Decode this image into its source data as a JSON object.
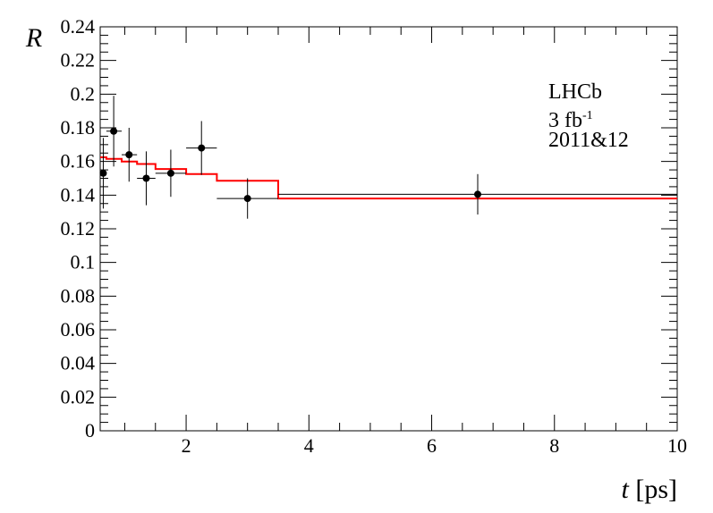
{
  "chart_data": {
    "type": "scatter",
    "title": "",
    "xlabel": "t [ps]",
    "xlabel_var": "t",
    "xlabel_unit": "[ps]",
    "ylabel": "R",
    "xlim": [
      0.6,
      10
    ],
    "ylim": [
      0,
      0.24
    ],
    "x_ticks": [
      2,
      4,
      6,
      8,
      10
    ],
    "y_ticks": [
      0,
      0.02,
      0.04,
      0.06,
      0.08,
      0.1,
      0.12,
      0.14,
      0.16,
      0.18,
      0.2,
      0.22,
      0.24
    ],
    "y_tick_labels": [
      "0",
      "0.02",
      "0.04",
      "0.06",
      "0.08",
      "0.1",
      "0.12",
      "0.14",
      "0.16",
      "0.18",
      "0.2",
      "0.22",
      "0.24"
    ],
    "grid": false,
    "annotations": {
      "experiment": "LHCb",
      "lumi_value": "3 fb",
      "lumi_exponent": "-1",
      "years": "2011&12"
    },
    "data_points": [
      {
        "x": 0.65,
        "x_lo": 0.6,
        "x_hi": 0.7,
        "y": 0.153,
        "y_err": 0.021
      },
      {
        "x": 0.82,
        "x_lo": 0.7,
        "x_hi": 0.95,
        "y": 0.178,
        "y_err": 0.021
      },
      {
        "x": 1.07,
        "x_lo": 0.95,
        "x_hi": 1.2,
        "y": 0.164,
        "y_err": 0.016
      },
      {
        "x": 1.35,
        "x_lo": 1.2,
        "x_hi": 1.5,
        "y": 0.15,
        "y_err": 0.016
      },
      {
        "x": 1.75,
        "x_lo": 1.5,
        "x_hi": 2.0,
        "y": 0.153,
        "y_err": 0.014
      },
      {
        "x": 2.25,
        "x_lo": 2.0,
        "x_hi": 2.5,
        "y": 0.168,
        "y_err": 0.016
      },
      {
        "x": 3.0,
        "x_lo": 2.5,
        "x_hi": 3.5,
        "y": 0.138,
        "y_err": 0.012
      },
      {
        "x": 6.75,
        "x_lo": 3.5,
        "x_hi": 10.0,
        "y": 0.1405,
        "y_err": 0.012
      }
    ],
    "series": [
      {
        "color": "#ff0000",
        "style": "step",
        "steps": [
          {
            "x_lo": 0.6,
            "x_hi": 0.7,
            "y": 0.1625
          },
          {
            "x_lo": 0.7,
            "x_hi": 0.95,
            "y": 0.1615
          },
          {
            "x_lo": 0.95,
            "x_hi": 1.2,
            "y": 0.16
          },
          {
            "x_lo": 1.2,
            "x_hi": 1.5,
            "y": 0.1585
          },
          {
            "x_lo": 1.5,
            "x_hi": 2.0,
            "y": 0.1555
          },
          {
            "x_lo": 2.0,
            "x_hi": 2.5,
            "y": 0.1525
          },
          {
            "x_lo": 2.5,
            "x_hi": 3.5,
            "y": 0.1485
          },
          {
            "x_lo": 3.5,
            "x_hi": 10.0,
            "y": 0.138
          }
        ]
      }
    ]
  }
}
